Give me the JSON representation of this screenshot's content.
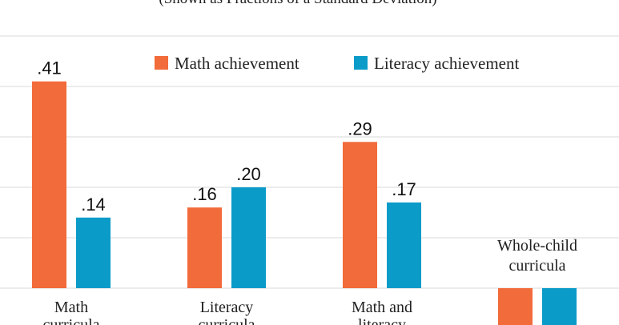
{
  "chart_data": {
    "type": "bar",
    "subtitle": "(Shown as Fractions of a Standard Deviation)",
    "categories": [
      {
        "lines": [
          "Math",
          "curricula"
        ]
      },
      {
        "lines": [
          "Literacy",
          "curricula"
        ]
      },
      {
        "lines": [
          "Math and",
          "literacy"
        ]
      },
      {
        "lines": [
          "Whole-child",
          "curricula"
        ]
      }
    ],
    "series": [
      {
        "name": "Math achievement",
        "color": "#f26b3a",
        "values": [
          0.41,
          0.16,
          0.29,
          0.01
        ],
        "labels": [
          ".41",
          ".16",
          ".29",
          ""
        ]
      },
      {
        "name": "Literacy achievement",
        "color": "#0a9bc9",
        "values": [
          0.14,
          0.2,
          0.17,
          0.01
        ],
        "labels": [
          ".14",
          ".20",
          ".17",
          ""
        ]
      }
    ],
    "ylim": [
      0,
      0.5
    ],
    "gridlines": [
      0,
      0.1,
      0.2,
      0.3,
      0.4,
      0.5
    ],
    "grid": true,
    "legend_position": "top-right",
    "xlabel": "",
    "ylabel": ""
  }
}
